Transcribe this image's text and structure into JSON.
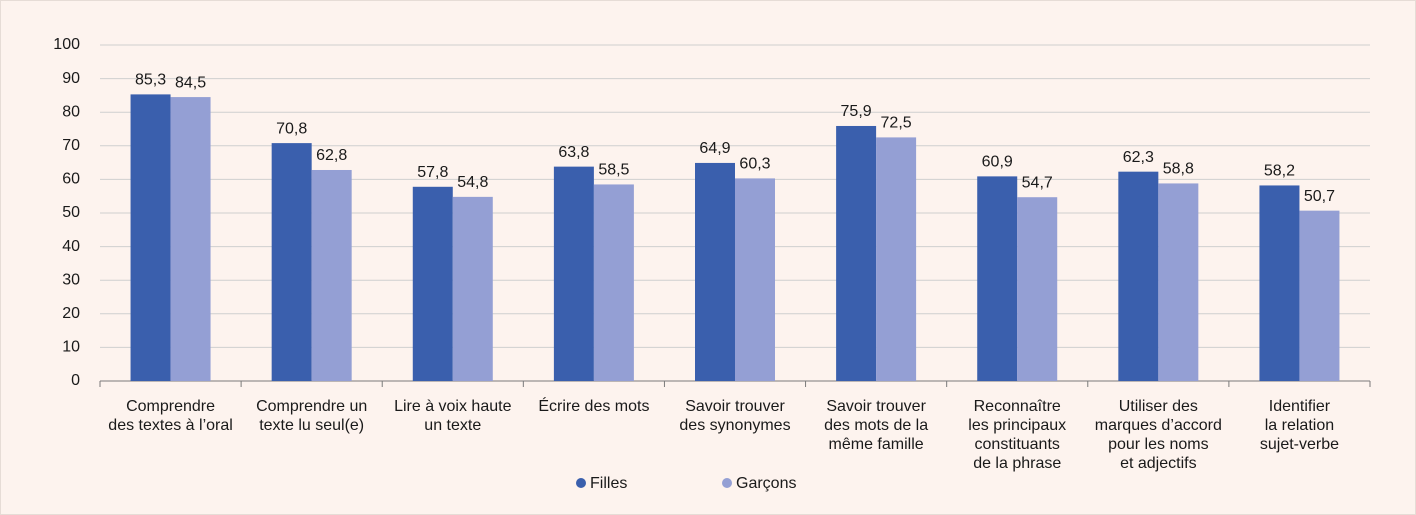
{
  "chart_data": {
    "type": "bar",
    "categories": [
      [
        "Comprendre",
        "des textes à l’oral"
      ],
      [
        "Comprendre un",
        "texte lu seul(e)"
      ],
      [
        "Lire à voix haute",
        "un texte"
      ],
      [
        "Écrire des mots"
      ],
      [
        "Savoir trouver",
        "des synonymes"
      ],
      [
        "Savoir trouver",
        "des mots de la",
        "même famille"
      ],
      [
        "Reconnaître",
        "les principaux",
        "constituants",
        "de la phrase"
      ],
      [
        "Utiliser des",
        "marques d’accord",
        "pour les noms",
        "et adjectifs"
      ],
      [
        "Identifier",
        "la relation",
        "sujet-verbe"
      ]
    ],
    "series": [
      {
        "name": "Filles",
        "color": "#3a5fad",
        "values": [
          85.3,
          70.8,
          57.8,
          63.8,
          64.9,
          75.9,
          60.9,
          62.3,
          58.2
        ],
        "value_labels": [
          "85,3",
          "70,8",
          "57,8",
          "63,8",
          "64,9",
          "75,9",
          "60,9",
          "62,3",
          "58,2"
        ]
      },
      {
        "name": "Garçons",
        "color": "#949fd4",
        "values": [
          84.5,
          62.8,
          54.8,
          58.5,
          60.3,
          72.5,
          54.7,
          58.8,
          50.7
        ],
        "value_labels": [
          "84,5",
          "62,8",
          "54,8",
          "58,5",
          "60,3",
          "72,5",
          "54,7",
          "58,8",
          "50,7"
        ]
      }
    ],
    "ylim": [
      0,
      100
    ],
    "yticks": [
      0,
      10,
      20,
      30,
      40,
      50,
      60,
      70,
      80,
      90,
      100
    ],
    "grid": true,
    "legend": "bottom"
  }
}
